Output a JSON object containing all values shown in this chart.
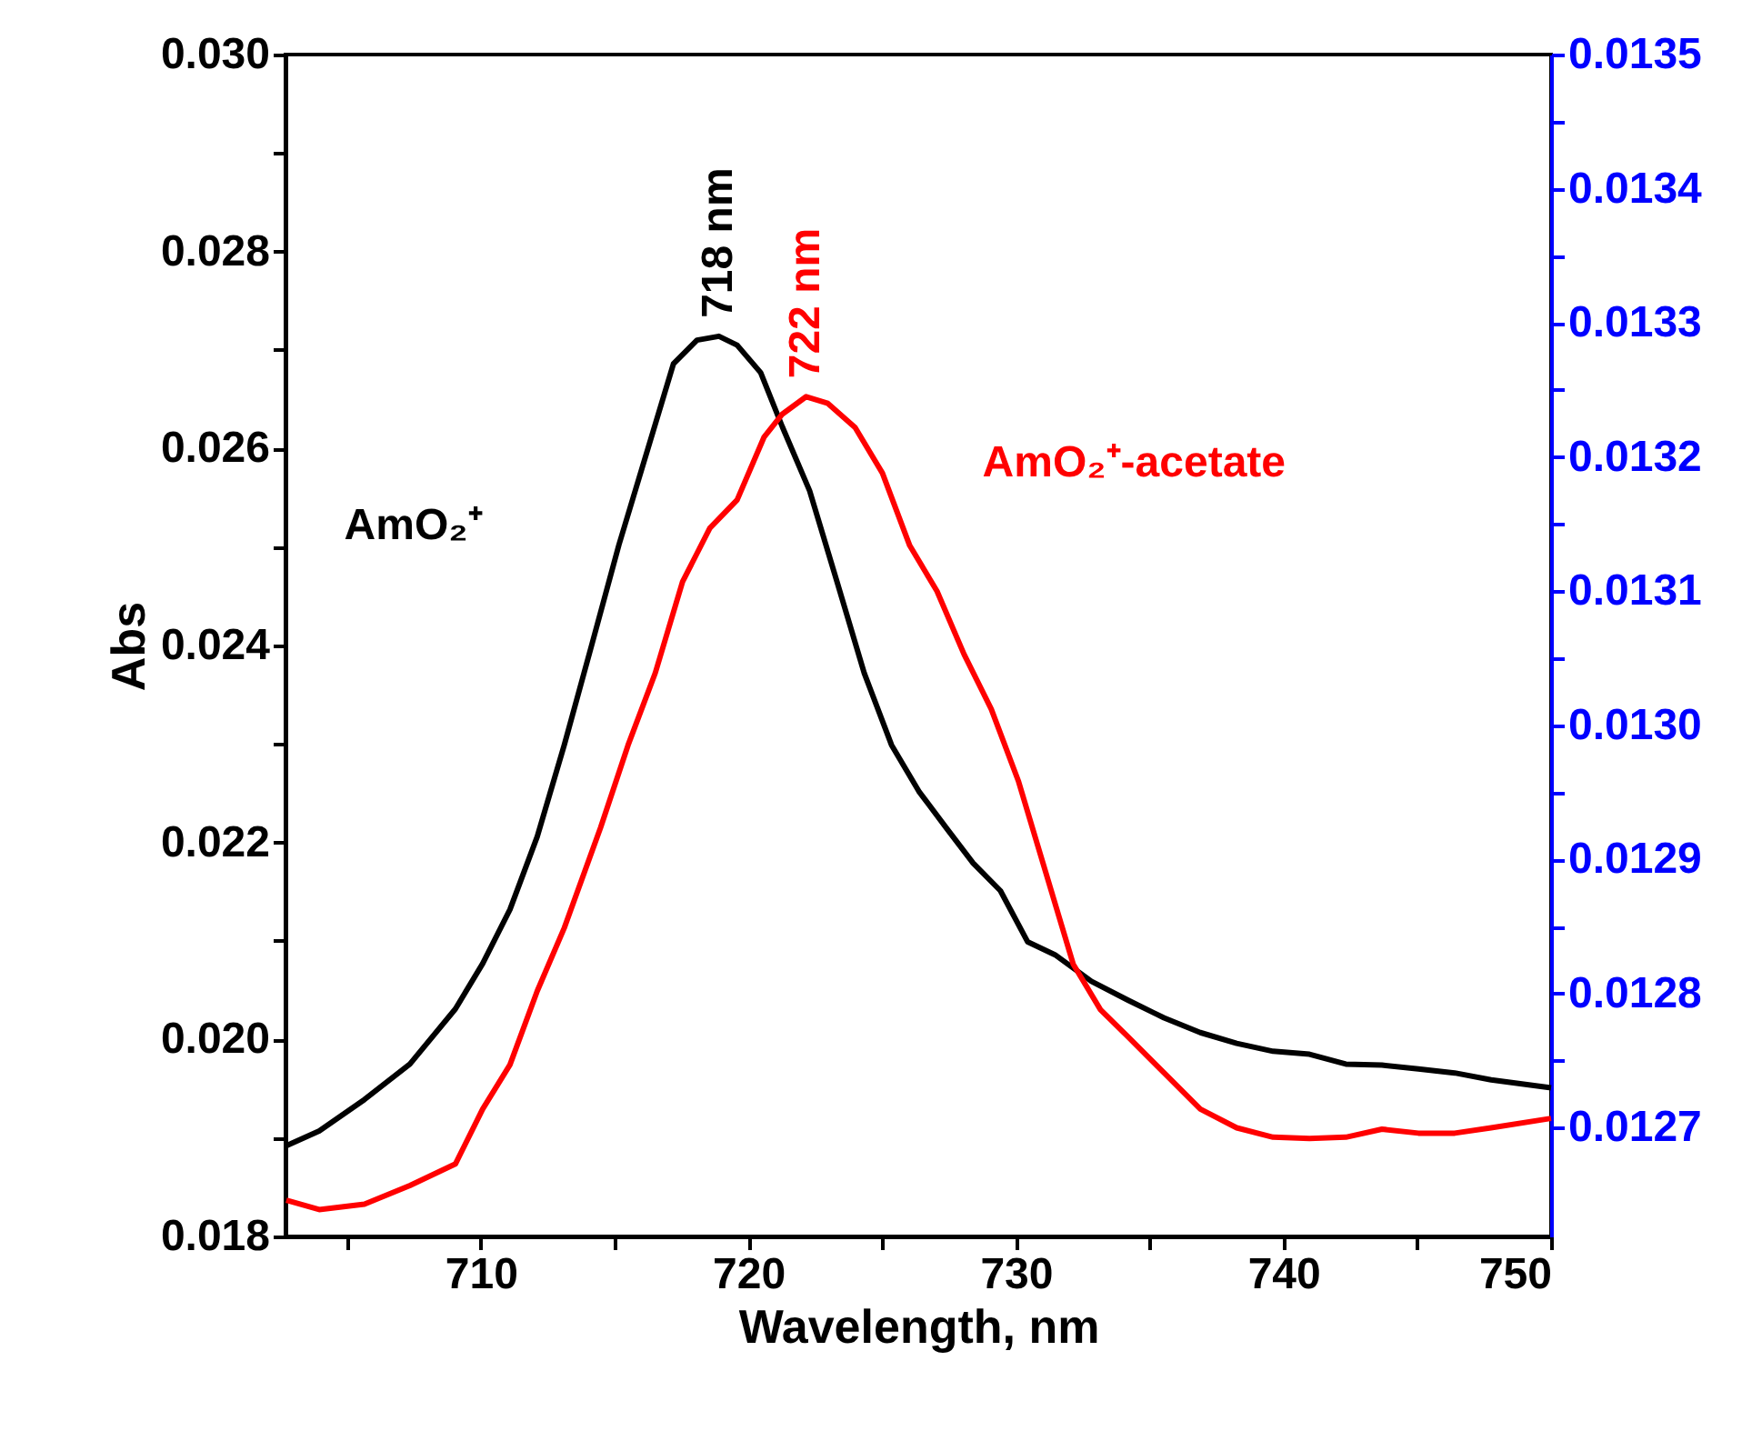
{
  "chart_data": {
    "type": "line",
    "xlabel": "Wavelength, nm",
    "ylabel": "Abs",
    "xlim": [
      702.7,
      750
    ],
    "xticks": [
      {
        "value": 705,
        "label": null
      },
      710,
      {
        "value": 715,
        "label": null
      },
      720,
      {
        "value": 725,
        "label": null
      },
      730,
      {
        "value": 735,
        "label": null
      },
      740,
      {
        "value": 745,
        "label": null
      },
      750
    ],
    "ylim": [
      0.018,
      0.03
    ],
    "yticks": [
      {
        "value": 0.018,
        "label": "0.018"
      },
      {
        "value": 0.019,
        "label": null
      },
      {
        "value": 0.02,
        "label": "0.020"
      },
      {
        "value": 0.021,
        "label": null
      },
      {
        "value": 0.022,
        "label": "0.022"
      },
      {
        "value": 0.023,
        "label": null
      },
      {
        "value": 0.024,
        "label": "0.024"
      },
      {
        "value": 0.025,
        "label": null
      },
      {
        "value": 0.026,
        "label": "0.026"
      },
      {
        "value": 0.027,
        "label": null
      },
      {
        "value": 0.028,
        "label": "0.028"
      },
      {
        "value": 0.029,
        "label": null
      },
      {
        "value": 0.03,
        "label": "0.030"
      }
    ],
    "y2lim": [
      0.012619,
      0.0135
    ],
    "y2ticks": [
      {
        "value": 0.0127,
        "label": "0.0127"
      },
      {
        "value": 0.01275,
        "label": null
      },
      {
        "value": 0.0128,
        "label": "0.0128"
      },
      {
        "value": 0.01285,
        "label": null
      },
      {
        "value": 0.0129,
        "label": "0.0129"
      },
      {
        "value": 0.01295,
        "label": null
      },
      {
        "value": 0.013,
        "label": "0.0130"
      },
      {
        "value": 0.01305,
        "label": null
      },
      {
        "value": 0.0131,
        "label": "0.0131"
      },
      {
        "value": 0.01315,
        "label": null
      },
      {
        "value": 0.0132,
        "label": "0.0132"
      },
      {
        "value": 0.01325,
        "label": null
      },
      {
        "value": 0.0133,
        "label": "0.0133"
      },
      {
        "value": 0.01335,
        "label": null
      },
      {
        "value": 0.0134,
        "label": "0.0134"
      },
      {
        "value": 0.01345,
        "label": null
      },
      {
        "value": 0.0135,
        "label": "0.0135"
      }
    ],
    "grid": false,
    "legend": false,
    "marker": "none",
    "line_style": "solid",
    "series": [
      {
        "name": "AmO₂⁺",
        "color": "#000000",
        "x": [
          702.73,
          703.96,
          705.65,
          707.35,
          709.05,
          710.07,
          711.09,
          712.11,
          713.12,
          714.14,
          715.16,
          716.18,
          717.2,
          718.08,
          718.9,
          719.58,
          720.46,
          721.27,
          722.29,
          723.31,
          724.33,
          725.35,
          726.37,
          727.39,
          728.4,
          729.42,
          730.44,
          731.46,
          732.82,
          734.18,
          735.53,
          736.89,
          738.25,
          739.61,
          740.97,
          742.33,
          743.68,
          745.04,
          746.4,
          747.76,
          750
        ],
        "values": [
          0.01892,
          0.01907,
          0.01939,
          0.01975,
          0.02031,
          0.02077,
          0.02132,
          0.02206,
          0.02299,
          0.024,
          0.02502,
          0.02594,
          0.02686,
          0.0271,
          0.02714,
          0.02705,
          0.02677,
          0.02622,
          0.02557,
          0.02465,
          0.02372,
          0.02299,
          0.02252,
          0.02215,
          0.02179,
          0.02151,
          0.02099,
          0.02086,
          0.02059,
          0.0204,
          0.02022,
          0.02007,
          0.01996,
          0.01988,
          0.01985,
          0.01975,
          0.01974,
          0.0197,
          0.01966,
          0.01959,
          0.01951
        ]
      },
      {
        "name": "AmO₂⁺-acetate",
        "color": "#ff0000",
        "axis": "y2",
        "x": [
          702.73,
          703.96,
          705.65,
          707.35,
          709.05,
          710.07,
          711.09,
          712.11,
          713.12,
          714.48,
          715.5,
          716.52,
          717.54,
          718.56,
          719.58,
          720.59,
          721.27,
          722.16,
          722.97,
          723.99,
          725.01,
          726.03,
          727.05,
          728.06,
          729.08,
          730.1,
          731.12,
          732.14,
          733.16,
          734.18,
          735.53,
          736.89,
          738.25,
          739.61,
          740.97,
          742.33,
          743.68,
          745.04,
          746.4,
          747.76,
          750
        ],
        "values": [
          0.012646,
          0.012639,
          0.012643,
          0.012657,
          0.012673,
          0.012714,
          0.012747,
          0.012802,
          0.012849,
          0.012924,
          0.012985,
          0.013039,
          0.013107,
          0.013147,
          0.013168,
          0.013215,
          0.013232,
          0.013245,
          0.01324,
          0.013222,
          0.013188,
          0.013134,
          0.0131,
          0.013053,
          0.013012,
          0.012958,
          0.01289,
          0.012822,
          0.012788,
          0.012768,
          0.012741,
          0.012714,
          0.0127,
          0.012693,
          0.012692,
          0.012693,
          0.012699,
          0.012696,
          0.012696,
          0.0127,
          0.012707
        ]
      }
    ],
    "annotations": [
      "718 nm",
      "722 nm"
    ]
  }
}
